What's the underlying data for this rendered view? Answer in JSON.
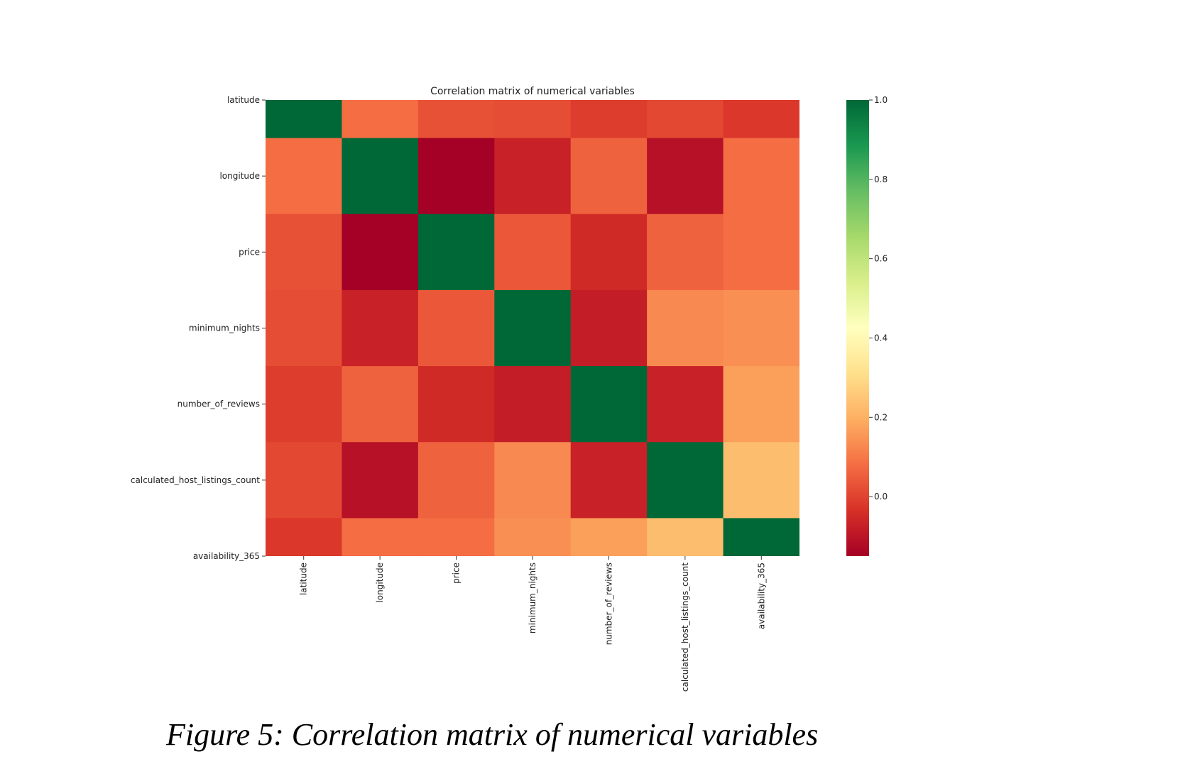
{
  "chart_data": {
    "type": "heatmap",
    "title": "Correlation matrix of numerical variables",
    "variables": [
      "latitude",
      "longitude",
      "price",
      "minimum_nights",
      "number_of_reviews",
      "calculated_host_listings_count",
      "availability_365"
    ],
    "matrix": [
      [
        1.0,
        0.08,
        0.03,
        0.02,
        -0.01,
        0.01,
        -0.02
      ],
      [
        0.08,
        1.0,
        -0.15,
        -0.07,
        0.06,
        -0.11,
        0.08
      ],
      [
        0.03,
        -0.15,
        1.0,
        0.04,
        -0.05,
        0.06,
        0.08
      ],
      [
        0.02,
        -0.07,
        0.04,
        1.0,
        -0.08,
        0.13,
        0.14
      ],
      [
        -0.01,
        0.06,
        -0.05,
        -0.08,
        1.0,
        -0.07,
        0.17
      ],
      [
        0.01,
        -0.11,
        0.06,
        0.13,
        -0.07,
        1.0,
        0.23
      ],
      [
        -0.02,
        0.08,
        0.08,
        0.14,
        0.17,
        0.23,
        1.0
      ]
    ],
    "colormap": "RdYlGn",
    "vmin": -0.15,
    "vmax": 1.0,
    "colorbar_ticks": [
      "0.0",
      "0.2",
      "0.4",
      "0.6",
      "0.8",
      "1.0"
    ],
    "colorbar_tick_values": [
      0.0,
      0.2,
      0.4,
      0.6,
      0.8,
      1.0
    ]
  },
  "caption": "Figure 5: Correlation matrix of numerical variables"
}
